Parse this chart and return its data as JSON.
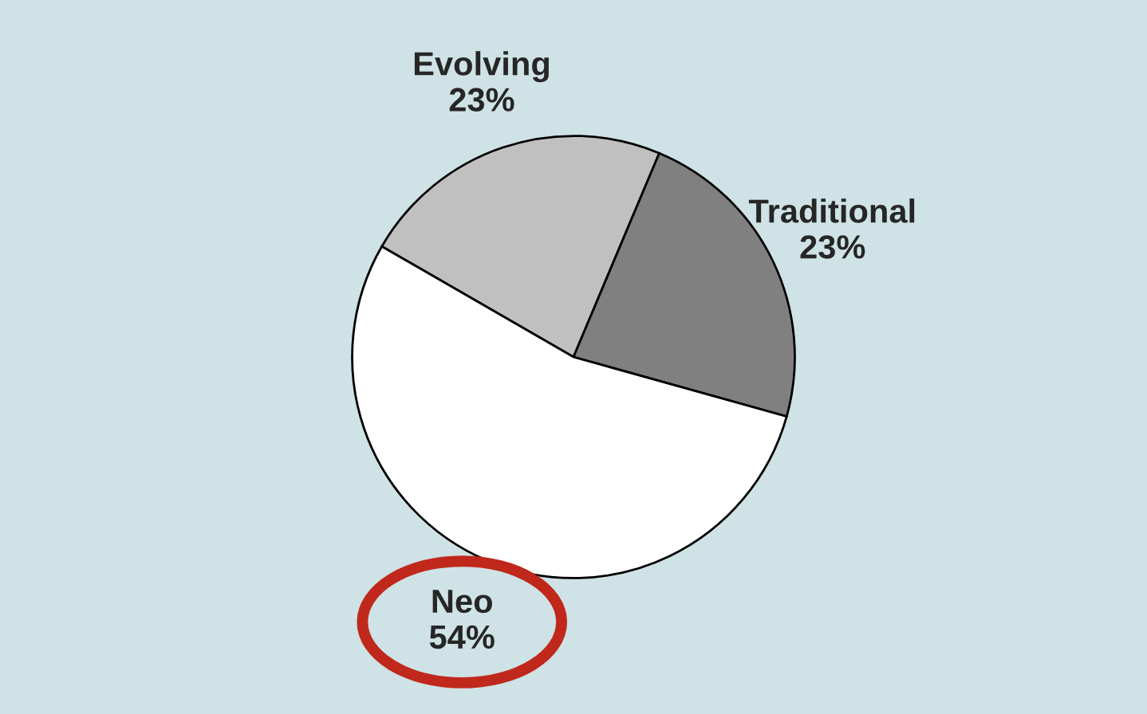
{
  "chart_data": {
    "type": "pie",
    "categories": [
      "Evolving",
      "Traditional",
      "Neo"
    ],
    "values": [
      23,
      23,
      54
    ],
    "value_labels": [
      "23%",
      "23%",
      "54%"
    ],
    "colors": [
      "#c0c0c0",
      "#808080",
      "#ffffff"
    ]
  }
}
